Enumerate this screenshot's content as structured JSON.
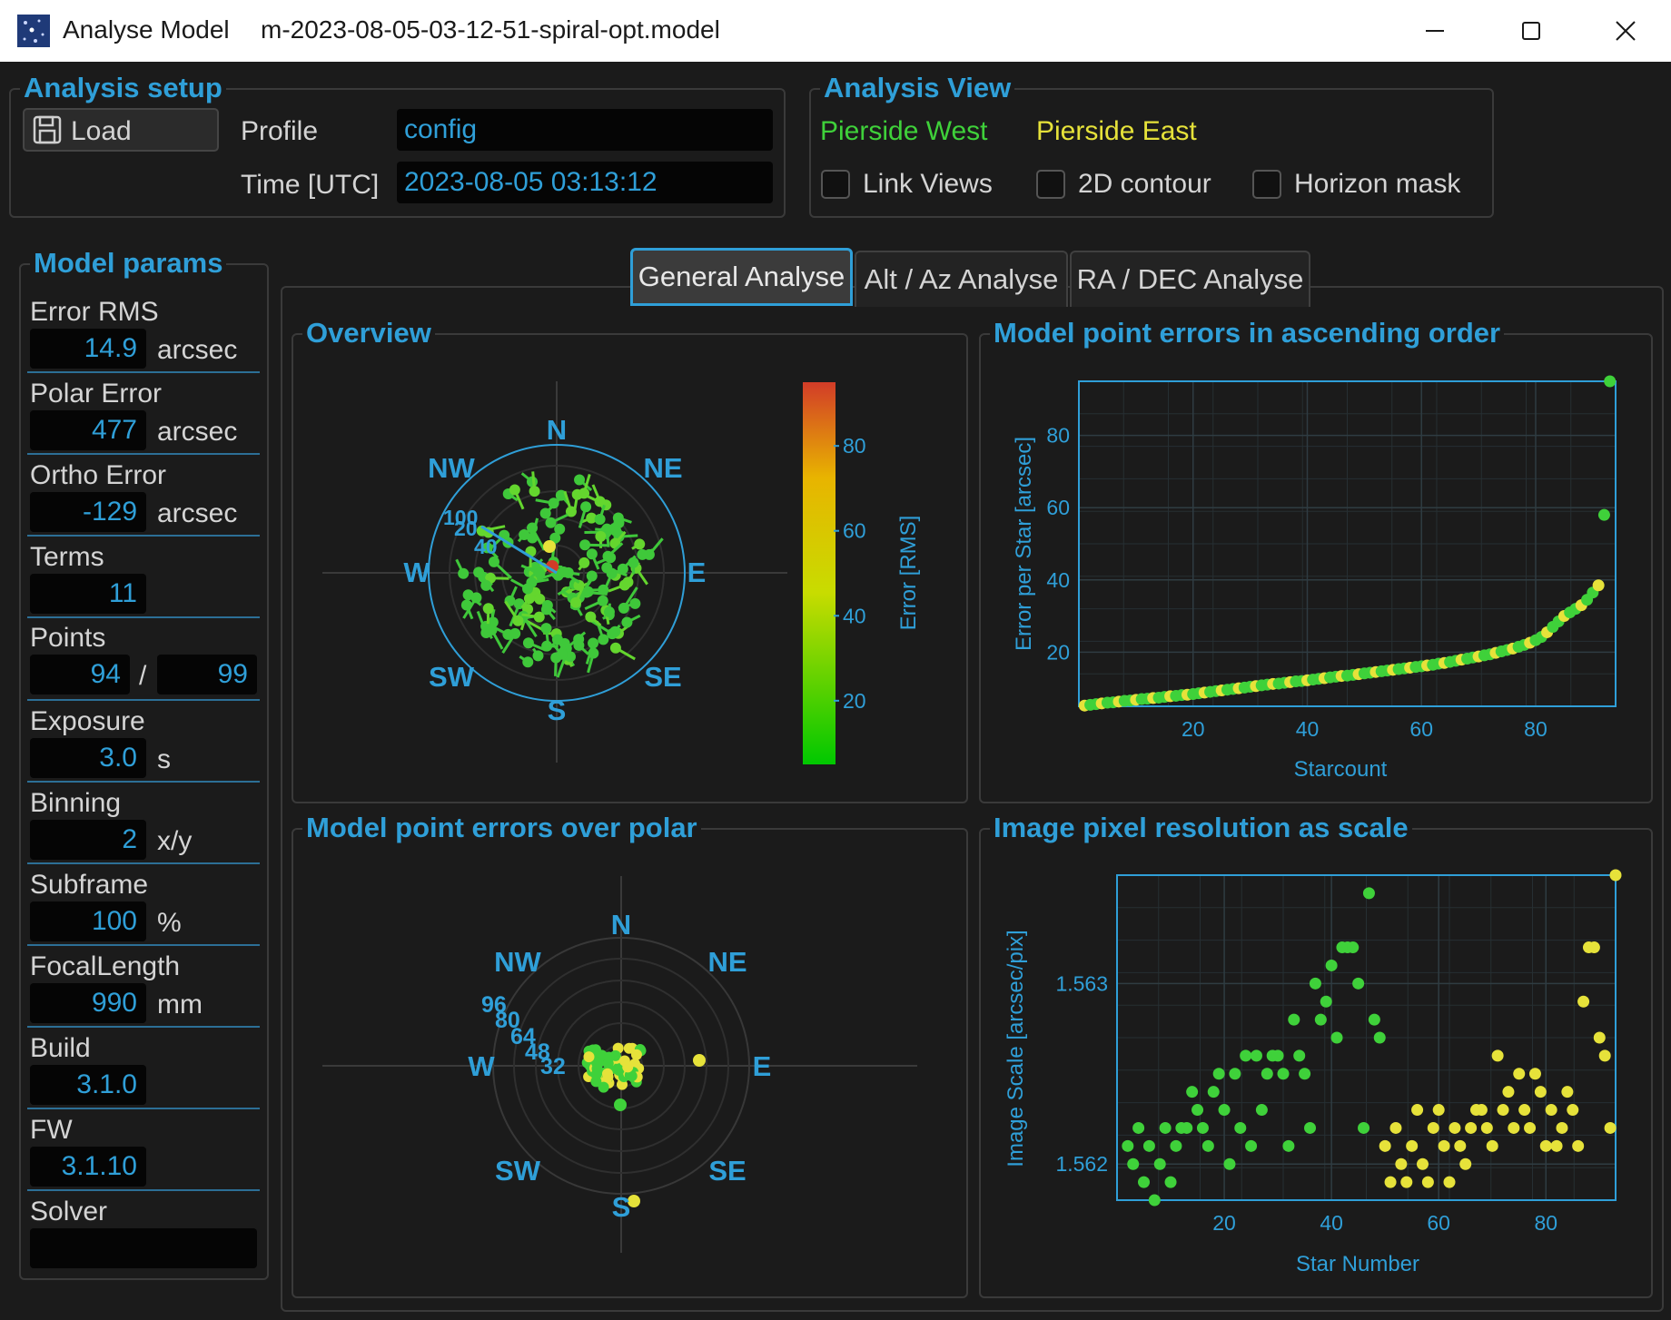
{
  "window": {
    "app_title": "Analyse Model",
    "file_title": "m-2023-08-05-03-12-51-spiral-opt.model"
  },
  "setup": {
    "title": "Analysis setup",
    "load_label": "Load",
    "profile_label": "Profile",
    "profile_value": "config",
    "time_label": "Time [UTC]",
    "time_value": "2023-08-05  03:13:12"
  },
  "view": {
    "title": "Analysis View",
    "pierside_west": "Pierside West",
    "pierside_east": "Pierside East",
    "link_views": "Link Views",
    "contour_2d": "2D contour",
    "horizon_mask": "Horizon mask",
    "colors": {
      "west": "#3fd13a",
      "east": "#e6e23a"
    }
  },
  "params": {
    "title": "Model params",
    "error_rms": {
      "label": "Error RMS",
      "value": "14.9",
      "unit": "arcsec"
    },
    "polar_error": {
      "label": "Polar Error",
      "value": "477",
      "unit": "arcsec"
    },
    "ortho_error": {
      "label": "Ortho Error",
      "value": "-129",
      "unit": "arcsec"
    },
    "terms": {
      "label": "Terms",
      "value": "11"
    },
    "points": {
      "label": "Points",
      "value": "94",
      "separator": "/",
      "total": "99"
    },
    "exposure": {
      "label": "Exposure",
      "value": "3.0",
      "unit": "s"
    },
    "binning": {
      "label": "Binning",
      "value": "2",
      "unit": "x/y"
    },
    "subframe": {
      "label": "Subframe",
      "value": "100",
      "unit": "%"
    },
    "focal_length": {
      "label": "FocalLength",
      "value": "990",
      "unit": "mm"
    },
    "build": {
      "label": "Build",
      "value": "3.1.0"
    },
    "fw": {
      "label": "FW",
      "value": "3.1.10"
    },
    "solver": {
      "label": "Solver",
      "value": ""
    }
  },
  "tabs": [
    {
      "label": "General Analyse",
      "active": true
    },
    {
      "label": "Alt / Az Analyse",
      "active": false
    },
    {
      "label": "RA / DEC Analyse",
      "active": false
    }
  ],
  "panels": {
    "overview": "Overview",
    "ascending": "Model point errors in ascending order",
    "polar": "Model point errors over polar",
    "scale": "Image pixel resolution as scale"
  },
  "compass": [
    "N",
    "NE",
    "E",
    "SE",
    "S",
    "SW",
    "W",
    "NW"
  ],
  "chart_data": [
    {
      "type": "scatter",
      "title": "Overview",
      "subtype": "polar vector plot (Alt/Az) with error arrows",
      "directions": [
        "N",
        "NE",
        "E",
        "SE",
        "S",
        "SW",
        "W",
        "NW"
      ],
      "ring_labels": [
        "100",
        "20",
        "40"
      ],
      "colorbar": {
        "label": "Error [RMS]",
        "ticks": [
          20,
          40,
          60,
          80
        ],
        "range": [
          5,
          95
        ],
        "colors": [
          "#00c800",
          "#c8dc00",
          "#e8b400",
          "#d23c28"
        ]
      }
    },
    {
      "type": "scatter",
      "title": "Model point errors in ascending order",
      "xlabel": "Starcount",
      "ylabel": "Error per Star [arcsec]",
      "xticks": [
        20,
        40,
        60,
        80
      ],
      "yticks": [
        20,
        40,
        60,
        80
      ],
      "xlim": [
        0,
        94
      ],
      "ylim": [
        5,
        95
      ],
      "grid": true,
      "x": [
        1,
        2,
        3,
        4,
        5,
        6,
        7,
        8,
        9,
        10,
        11,
        12,
        13,
        14,
        15,
        16,
        17,
        18,
        19,
        20,
        21,
        22,
        23,
        24,
        25,
        26,
        27,
        28,
        29,
        30,
        31,
        32,
        33,
        34,
        35,
        36,
        37,
        38,
        39,
        40,
        41,
        42,
        43,
        44,
        45,
        46,
        47,
        48,
        49,
        50,
        51,
        52,
        53,
        54,
        55,
        56,
        57,
        58,
        59,
        60,
        61,
        62,
        63,
        64,
        65,
        66,
        67,
        68,
        69,
        70,
        71,
        72,
        73,
        74,
        75,
        76,
        77,
        78,
        79,
        80,
        81,
        82,
        83,
        84,
        85,
        86,
        87,
        88,
        89,
        90,
        91,
        92,
        93
      ],
      "values": [
        5.2,
        5.4,
        5.6,
        5.8,
        6.0,
        6.1,
        6.3,
        6.5,
        6.6,
        6.8,
        7.0,
        7.1,
        7.3,
        7.4,
        7.6,
        7.8,
        7.9,
        8.1,
        8.2,
        8.4,
        8.6,
        8.8,
        9.0,
        9.2,
        9.4,
        9.6,
        9.8,
        10.0,
        10.2,
        10.4,
        10.6,
        10.8,
        11.0,
        11.2,
        11.3,
        11.5,
        11.7,
        11.9,
        12.0,
        12.2,
        12.4,
        12.6,
        12.8,
        13.0,
        13.2,
        13.4,
        13.5,
        13.7,
        13.9,
        14.1,
        14.3,
        14.5,
        14.7,
        14.9,
        15.1,
        15.3,
        15.5,
        15.7,
        15.9,
        16.1,
        16.3,
        16.5,
        16.8,
        17.0,
        17.3,
        17.6,
        17.9,
        18.2,
        18.5,
        18.8,
        19.1,
        19.4,
        19.8,
        20.2,
        20.6,
        21.0,
        21.5,
        22.0,
        22.6,
        23.3,
        24.2,
        25.5,
        27.0,
        28.5,
        30.0,
        31.0,
        32.0,
        33.0,
        34.5,
        36.5,
        38.5,
        58.0,
        95.0
      ]
    },
    {
      "type": "scatter",
      "title": "Model point errors over polar",
      "subtype": "polar scatter",
      "directions": [
        "N",
        "NE",
        "E",
        "SE",
        "S",
        "SW",
        "W",
        "NW"
      ],
      "ring_labels": [
        "96",
        "80",
        "64",
        "48",
        "32"
      ]
    },
    {
      "type": "scatter",
      "title": "Image pixel resolution as scale",
      "xlabel": "Star Number",
      "ylabel": "Image Scale [arcsec/pix]",
      "xticks": [
        20,
        40,
        60,
        80
      ],
      "yticks": [
        1.562,
        1.563
      ],
      "xlim": [
        0,
        93
      ],
      "ylim": [
        1.5618,
        1.5636
      ],
      "grid": true,
      "series": [
        {
          "name": "Pierside West",
          "color": "#3fd13a",
          "x": [
            2,
            3,
            4,
            5,
            6,
            7,
            8,
            9,
            10,
            11,
            12,
            13,
            14,
            15,
            16,
            17,
            18,
            19,
            20,
            21,
            22,
            23,
            24,
            25,
            26,
            27,
            28,
            29,
            30,
            31,
            32,
            33,
            34,
            35,
            36,
            37,
            38,
            39,
            40,
            41,
            42,
            43,
            44,
            45,
            46,
            47,
            48,
            49
          ],
          "values": [
            1.5621,
            1.562,
            1.5622,
            1.5619,
            1.5621,
            1.5618,
            1.562,
            1.5622,
            1.5619,
            1.5621,
            1.5622,
            1.5622,
            1.5624,
            1.5623,
            1.5622,
            1.5621,
            1.5624,
            1.5625,
            1.5623,
            1.562,
            1.5625,
            1.5622,
            1.5626,
            1.5621,
            1.5626,
            1.5623,
            1.5625,
            1.5626,
            1.5626,
            1.5625,
            1.5621,
            1.5628,
            1.5626,
            1.5625,
            1.5622,
            1.563,
            1.5628,
            1.5629,
            1.5631,
            1.5627,
            1.5632,
            1.5632,
            1.5632,
            1.563,
            1.5622,
            1.5635,
            1.5628,
            1.5627
          ]
        },
        {
          "name": "Pierside East",
          "color": "#e6e23a",
          "x": [
            50,
            51,
            52,
            53,
            54,
            55,
            56,
            57,
            58,
            59,
            60,
            61,
            62,
            63,
            64,
            65,
            66,
            67,
            68,
            69,
            70,
            71,
            72,
            73,
            74,
            75,
            76,
            77,
            78,
            79,
            80,
            81,
            82,
            83,
            84,
            85,
            86,
            87,
            88,
            89,
            90,
            91,
            92,
            93
          ],
          "values": [
            1.5621,
            1.5619,
            1.5622,
            1.562,
            1.5619,
            1.5621,
            1.5623,
            1.562,
            1.5619,
            1.5622,
            1.5623,
            1.5621,
            1.5619,
            1.5622,
            1.5621,
            1.562,
            1.5622,
            1.5623,
            1.5623,
            1.5622,
            1.5621,
            1.5626,
            1.5623,
            1.5624,
            1.5622,
            1.5625,
            1.5623,
            1.5622,
            1.5625,
            1.5624,
            1.5621,
            1.5623,
            1.5621,
            1.5622,
            1.5624,
            1.5623,
            1.5621,
            1.5629,
            1.5632,
            1.5632,
            1.5627,
            1.5626,
            1.5622,
            1.5636
          ]
        }
      ]
    }
  ]
}
